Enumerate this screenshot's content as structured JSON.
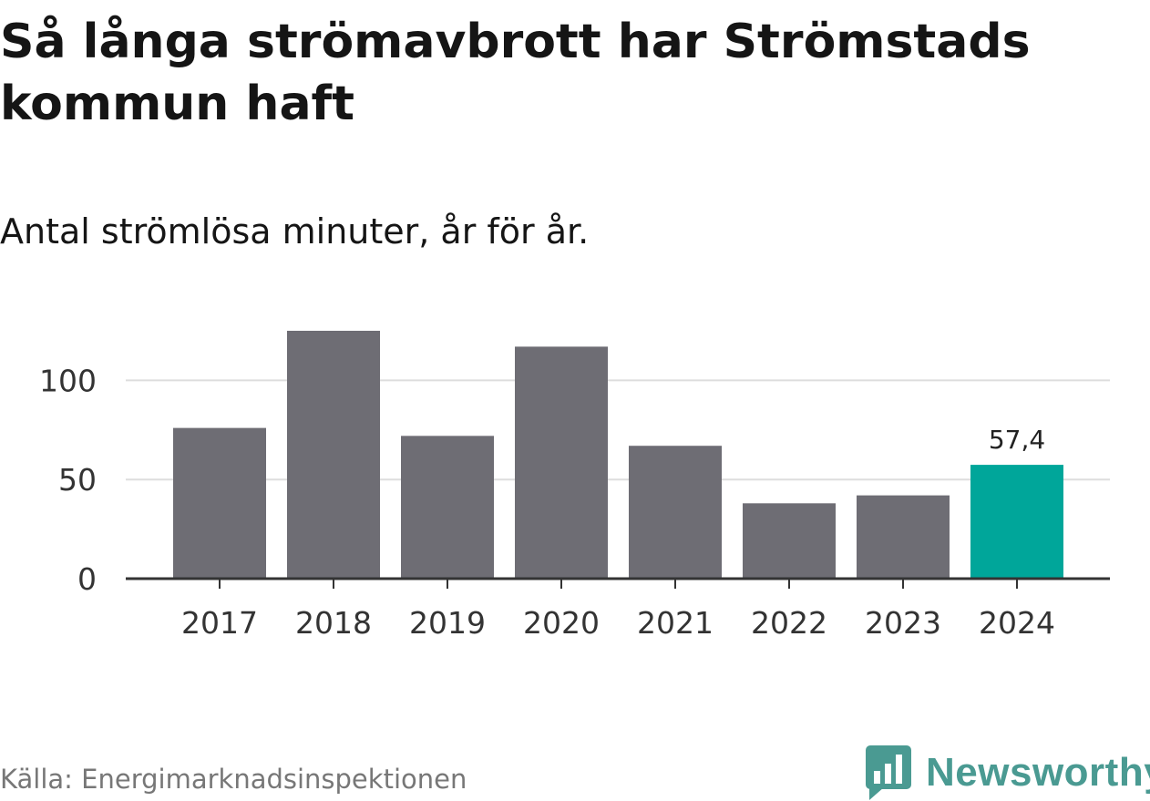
{
  "header": {
    "title": "Så långa strömavbrott har Strömstads kommun haft",
    "subtitle": "Antal strömlösa minuter, år för år."
  },
  "footer": {
    "source": "Källa: Energimarknadsinspektionen",
    "brand": "Newsworthy",
    "brand_icon": "bar-chart-speech-bubble-icon"
  },
  "colors": {
    "bar": "#6e6d74",
    "highlight": "#00a69a",
    "grid": "#dddddd",
    "axis": "#333333",
    "brand": "#4a9a92"
  },
  "chart_data": {
    "type": "bar",
    "title": "Så långa strömavbrott har Strömstads kommun haft",
    "subtitle": "Antal strömlösa minuter, år för år.",
    "xlabel": "",
    "ylabel": "",
    "categories": [
      "2017",
      "2018",
      "2019",
      "2020",
      "2021",
      "2022",
      "2023",
      "2024"
    ],
    "values": [
      76,
      125,
      72,
      117,
      67,
      38,
      42,
      57.4
    ],
    "highlight_index": 7,
    "annotations": [
      {
        "category": "2024",
        "text": "57,4"
      }
    ],
    "yticks": [
      0,
      50,
      100
    ],
    "ylim": [
      0,
      130
    ],
    "grid": true
  }
}
